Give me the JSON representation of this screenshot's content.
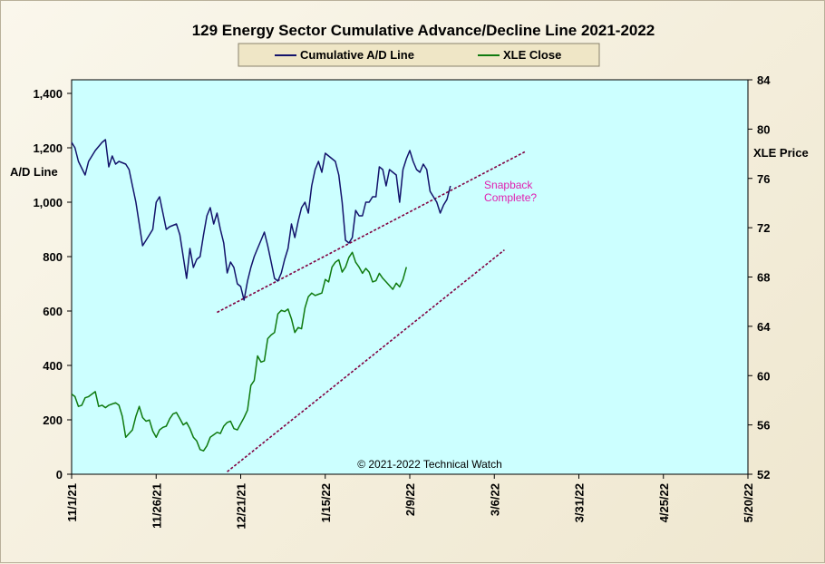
{
  "chart_data": {
    "type": "line",
    "title": "129 Energy Sector Cumulative Advance/Decline Line 2021-2022",
    "ylabel": "A/D Line",
    "y2label": "XLE Price",
    "ylim": [
      0,
      1450
    ],
    "y2lim": [
      52,
      84
    ],
    "yticks": [
      "0",
      "200",
      "400",
      "600",
      "800",
      "1,000",
      "1,200",
      "1,400"
    ],
    "y2ticks": [
      "52",
      "56",
      "60",
      "64",
      "68",
      "72",
      "76",
      "80",
      "84"
    ],
    "xticks": [
      "11/1/21",
      "11/26/21",
      "12/21/21",
      "1/15/22",
      "2/9/22",
      "3/6/22",
      "3/31/22",
      "4/25/22",
      "5/20/22"
    ],
    "xlim_days": [
      0,
      200
    ],
    "grid": false,
    "legend_position": "top-center",
    "colors": {
      "ad": "#13136b",
      "xle": "#0f7a0f",
      "trend": "#800040",
      "plot_bg": "#ccffff",
      "note": "#e020b0"
    },
    "series": [
      {
        "name": "Cumulative A/D Line",
        "axis": "left",
        "points": [
          [
            0,
            1220
          ],
          [
            1,
            1200
          ],
          [
            2,
            1150
          ],
          [
            4,
            1100
          ],
          [
            5,
            1150
          ],
          [
            7,
            1190
          ],
          [
            9,
            1220
          ],
          [
            10,
            1230
          ],
          [
            11,
            1130
          ],
          [
            12,
            1170
          ],
          [
            13,
            1140
          ],
          [
            14,
            1150
          ],
          [
            16,
            1140
          ],
          [
            17,
            1120
          ],
          [
            18,
            1060
          ],
          [
            19,
            1000
          ],
          [
            20,
            920
          ],
          [
            21,
            840
          ],
          [
            22,
            860
          ],
          [
            23,
            880
          ],
          [
            24,
            900
          ],
          [
            25,
            1000
          ],
          [
            26,
            1020
          ],
          [
            27,
            960
          ],
          [
            28,
            900
          ],
          [
            29,
            910
          ],
          [
            31,
            920
          ],
          [
            32,
            880
          ],
          [
            33,
            800
          ],
          [
            34,
            720
          ],
          [
            35,
            830
          ],
          [
            36,
            760
          ],
          [
            37,
            790
          ],
          [
            38,
            800
          ],
          [
            39,
            880
          ],
          [
            40,
            950
          ],
          [
            41,
            980
          ],
          [
            42,
            920
          ],
          [
            43,
            960
          ],
          [
            44,
            900
          ],
          [
            45,
            850
          ],
          [
            46,
            740
          ],
          [
            47,
            780
          ],
          [
            48,
            760
          ],
          [
            49,
            700
          ],
          [
            50,
            690
          ],
          [
            51,
            640
          ],
          [
            52,
            710
          ],
          [
            53,
            760
          ],
          [
            54,
            800
          ],
          [
            55,
            830
          ],
          [
            56,
            860
          ],
          [
            57,
            890
          ],
          [
            58,
            840
          ],
          [
            59,
            780
          ],
          [
            60,
            720
          ],
          [
            61,
            710
          ],
          [
            62,
            740
          ],
          [
            63,
            790
          ],
          [
            64,
            830
          ],
          [
            65,
            920
          ],
          [
            66,
            870
          ],
          [
            67,
            930
          ],
          [
            68,
            980
          ],
          [
            69,
            1000
          ],
          [
            70,
            960
          ],
          [
            71,
            1060
          ],
          [
            72,
            1120
          ],
          [
            73,
            1150
          ],
          [
            74,
            1110
          ],
          [
            75,
            1180
          ],
          [
            76,
            1170
          ],
          [
            77,
            1160
          ],
          [
            78,
            1150
          ],
          [
            79,
            1100
          ],
          [
            80,
            1000
          ],
          [
            81,
            860
          ],
          [
            82,
            850
          ],
          [
            83,
            870
          ],
          [
            84,
            970
          ],
          [
            85,
            950
          ],
          [
            86,
            950
          ],
          [
            87,
            1000
          ],
          [
            88,
            1000
          ],
          [
            89,
            1020
          ],
          [
            90,
            1020
          ],
          [
            91,
            1130
          ],
          [
            92,
            1120
          ],
          [
            93,
            1060
          ],
          [
            94,
            1120
          ],
          [
            95,
            1110
          ],
          [
            96,
            1100
          ],
          [
            97,
            1000
          ],
          [
            98,
            1120
          ],
          [
            99,
            1160
          ],
          [
            100,
            1190
          ],
          [
            101,
            1150
          ],
          [
            102,
            1120
          ],
          [
            103,
            1110
          ],
          [
            104,
            1140
          ],
          [
            105,
            1120
          ],
          [
            106,
            1040
          ],
          [
            107,
            1020
          ],
          [
            108,
            1000
          ],
          [
            109,
            960
          ],
          [
            110,
            990
          ],
          [
            111,
            1010
          ],
          [
            112,
            1060
          ]
        ]
      },
      {
        "name": "XLE Close",
        "axis": "right",
        "points": [
          [
            0,
            58.5
          ],
          [
            1,
            58.3
          ],
          [
            2,
            57.5
          ],
          [
            3,
            57.6
          ],
          [
            4,
            58.2
          ],
          [
            5,
            58.3
          ],
          [
            6,
            58.5
          ],
          [
            7,
            58.7
          ],
          [
            8,
            57.5
          ],
          [
            9,
            57.6
          ],
          [
            10,
            57.4
          ],
          [
            11,
            57.6
          ],
          [
            12,
            57.7
          ],
          [
            13,
            57.8
          ],
          [
            14,
            57.6
          ],
          [
            15,
            56.7
          ],
          [
            16,
            55.0
          ],
          [
            17,
            55.3
          ],
          [
            18,
            55.6
          ],
          [
            19,
            56.7
          ],
          [
            20,
            57.5
          ],
          [
            21,
            56.6
          ],
          [
            22,
            56.3
          ],
          [
            23,
            56.4
          ],
          [
            24,
            55.5
          ],
          [
            25,
            55.0
          ],
          [
            26,
            55.6
          ],
          [
            27,
            55.8
          ],
          [
            28,
            55.9
          ],
          [
            29,
            56.5
          ],
          [
            30,
            56.9
          ],
          [
            31,
            57.0
          ],
          [
            32,
            56.5
          ],
          [
            33,
            56.0
          ],
          [
            34,
            56.2
          ],
          [
            35,
            55.7
          ],
          [
            36,
            55.0
          ],
          [
            37,
            54.7
          ],
          [
            38,
            54.0
          ],
          [
            39,
            53.9
          ],
          [
            40,
            54.3
          ],
          [
            41,
            55.0
          ],
          [
            42,
            55.2
          ],
          [
            43,
            55.4
          ],
          [
            44,
            55.3
          ],
          [
            45,
            55.9
          ],
          [
            46,
            56.2
          ],
          [
            47,
            56.3
          ],
          [
            48,
            55.7
          ],
          [
            49,
            55.6
          ],
          [
            50,
            56.1
          ],
          [
            51,
            56.6
          ],
          [
            52,
            57.2
          ],
          [
            53,
            59.2
          ],
          [
            54,
            59.6
          ],
          [
            55,
            61.6
          ],
          [
            56,
            61.1
          ],
          [
            57,
            61.2
          ],
          [
            58,
            63.0
          ],
          [
            59,
            63.3
          ],
          [
            60,
            63.5
          ],
          [
            61,
            65.0
          ],
          [
            62,
            65.3
          ],
          [
            63,
            65.2
          ],
          [
            64,
            65.4
          ],
          [
            65,
            64.6
          ],
          [
            66,
            63.5
          ],
          [
            67,
            63.9
          ],
          [
            68,
            63.8
          ],
          [
            69,
            65.5
          ],
          [
            70,
            66.4
          ],
          [
            71,
            66.7
          ],
          [
            72,
            66.5
          ],
          [
            73,
            66.6
          ],
          [
            74,
            66.7
          ],
          [
            75,
            67.8
          ],
          [
            76,
            67.6
          ],
          [
            77,
            68.8
          ],
          [
            78,
            69.2
          ],
          [
            79,
            69.4
          ],
          [
            80,
            68.4
          ],
          [
            81,
            68.8
          ],
          [
            82,
            69.6
          ],
          [
            83,
            70.0
          ],
          [
            84,
            69.2
          ],
          [
            85,
            68.8
          ],
          [
            86,
            68.3
          ],
          [
            87,
            68.7
          ],
          [
            88,
            68.4
          ],
          [
            89,
            67.6
          ],
          [
            90,
            67.7
          ],
          [
            91,
            68.3
          ],
          [
            92,
            67.9
          ],
          [
            93,
            67.6
          ],
          [
            94,
            67.3
          ],
          [
            95,
            67.0
          ],
          [
            96,
            67.5
          ],
          [
            97,
            67.2
          ],
          [
            98,
            67.8
          ],
          [
            99,
            68.8
          ]
        ]
      }
    ],
    "trendlines": [
      {
        "axis": "left",
        "from": [
          43,
          595
        ],
        "to": [
          134,
          1185
        ]
      },
      {
        "axis": "right",
        "from": [
          46,
          52.2
        ],
        "to": [
          128,
          70.2
        ]
      }
    ],
    "annotations": [
      {
        "lines": [
          "Snapback",
          "Complete?"
        ],
        "anchor": [
          122,
          1030
        ],
        "axis": "left"
      }
    ],
    "copyright": "© 2021-2022  Technical Watch"
  }
}
